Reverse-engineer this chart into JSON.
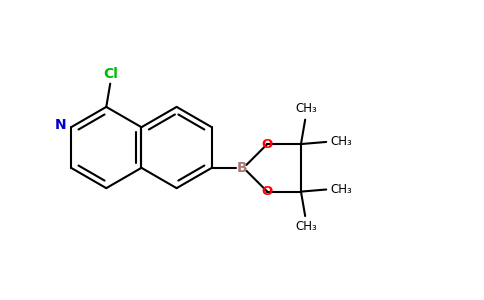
{
  "background_color": "#ffffff",
  "bond_color": "#000000",
  "n_color": "#0000cc",
  "cl_color": "#00bb00",
  "b_color": "#aa7777",
  "o_color": "#ff0000",
  "bond_width": 1.5,
  "figsize": [
    4.84,
    3.0
  ],
  "dpi": 100,
  "xlim": [
    0,
    9.68
  ],
  "ylim": [
    0,
    6.0
  ]
}
